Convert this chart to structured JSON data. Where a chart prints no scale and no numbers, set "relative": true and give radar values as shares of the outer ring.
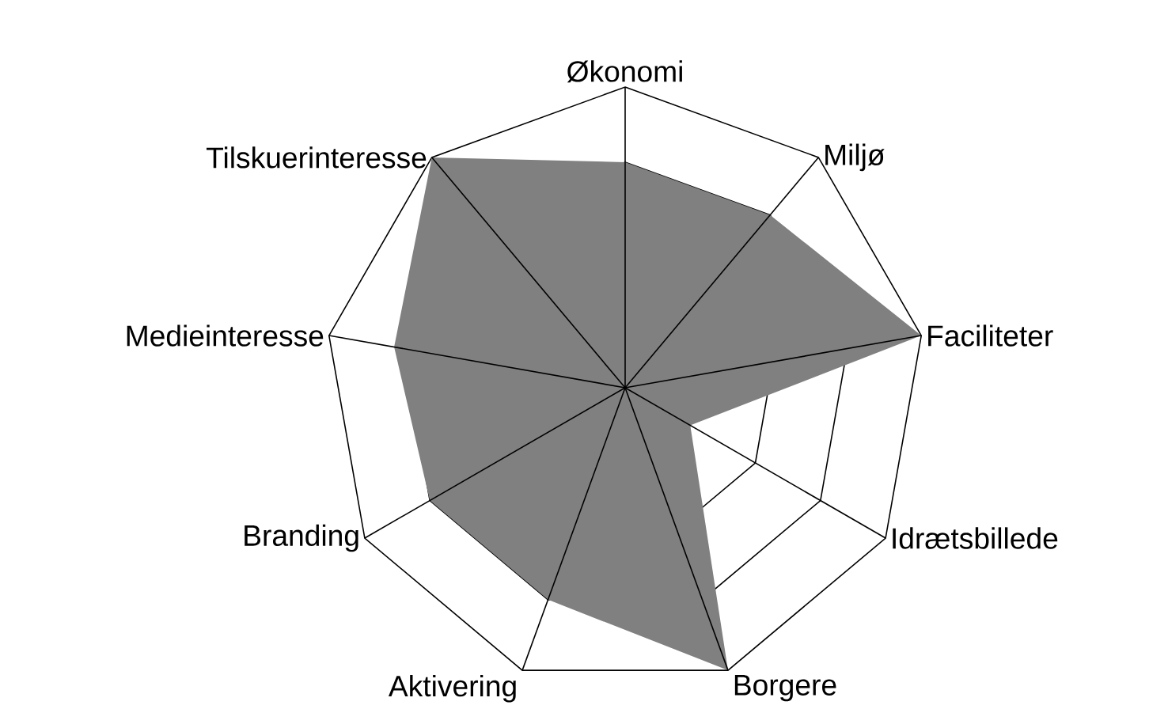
{
  "chart_data": {
    "type": "radar",
    "relative": true,
    "grid": true,
    "categories": [
      "Økonomi",
      "Miljø",
      "Faciliteter",
      "Idrætsbillede",
      "Borgere",
      "Aktivering",
      "Branding",
      "Medieinteresse",
      "Tilskuerinteresse"
    ],
    "series": [
      {
        "color": "#808080",
        "values": [
          0.75,
          0.75,
          1.0,
          0.25,
          1.0,
          0.75,
          0.75,
          0.78,
          1.0
        ]
      }
    ]
  }
}
